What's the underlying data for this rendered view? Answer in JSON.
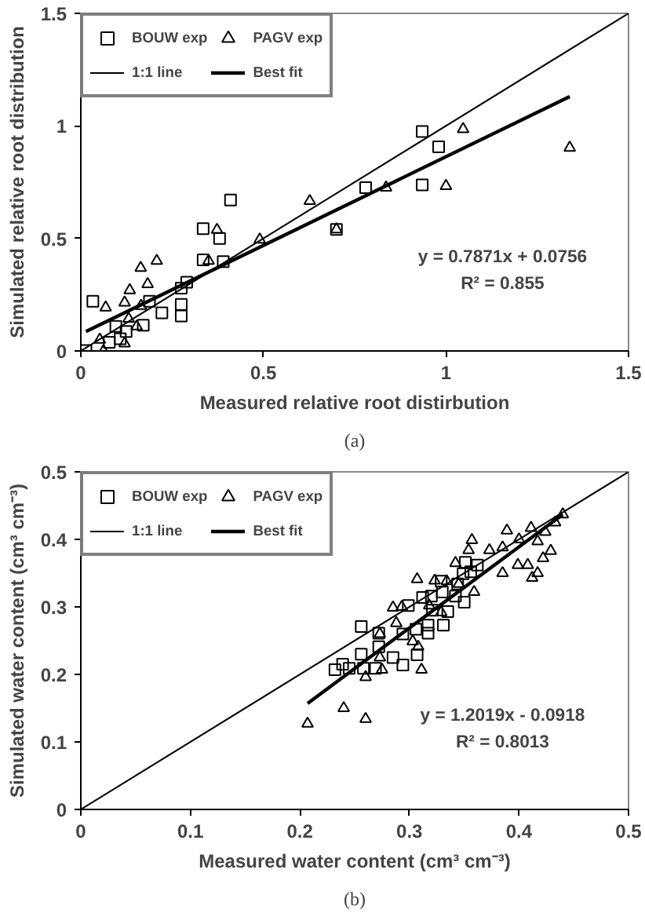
{
  "chart_data": [
    {
      "type": "scatter",
      "xlabel": "Measured relative root distirbution",
      "ylabel": "Simulated relative root distribution",
      "xlim": [
        0,
        1.5
      ],
      "ylim": [
        0,
        1.5
      ],
      "xticks": [
        0,
        0.5,
        1,
        1.5
      ],
      "yticks": [
        0,
        0.5,
        1,
        1.5
      ],
      "grid": false,
      "legend": "top left",
      "annotations": [
        {
          "text": "y = 0.7871x + 0.0756"
        },
        {
          "text": "R² = 0.855"
        },
        {
          "text": "(a)"
        }
      ],
      "series": [
        {
          "name": "BOUW exp",
          "color": "#000000",
          "marker": "square",
          "x": [
            0.935,
            0.98,
            0.935,
            0.78,
            0.41,
            0.335,
            0.38,
            0.335,
            0.39,
            0.7,
            0.29,
            0.275,
            0.033,
            0.188,
            0.275,
            0.222,
            0.275,
            0.171,
            0.096,
            0.108,
            0.078,
            0.014,
            0.124
          ],
          "values": [
            0.975,
            0.907,
            0.738,
            0.726,
            0.671,
            0.543,
            0.5,
            0.405,
            0.397,
            0.54,
            0.305,
            0.279,
            0.221,
            0.221,
            0.207,
            0.169,
            0.155,
            0.114,
            0.109,
            0.054,
            0.038,
            0.002,
            0.086
          ]
        },
        {
          "name": "PAGV exp",
          "color": "#000000",
          "marker": "triangle",
          "x": [
            1.047,
            1.339,
            1.0,
            0.836,
            0.627,
            0.7,
            0.49,
            0.373,
            0.35,
            0.208,
            0.164,
            0.183,
            0.134,
            0.12,
            0.068,
            0.165,
            0.131,
            0.153,
            0.052,
            0.062,
            0.12
          ],
          "values": [
            0.986,
            0.903,
            0.733,
            0.726,
            0.666,
            0.54,
            0.495,
            0.538,
            0.4,
            0.4,
            0.369,
            0.297,
            0.27,
            0.215,
            0.193,
            0.2,
            0.143,
            0.109,
            0.05,
            0.0,
            0.033
          ]
        },
        {
          "name": "1:1 line",
          "color": "#000000",
          "type": "line",
          "x": [
            0,
            1.5
          ],
          "values": [
            0,
            1.5
          ]
        },
        {
          "name": "Best fit",
          "color": "#000000",
          "type": "line",
          "x": [
            0.014,
            1.339
          ],
          "values": [
            0.086,
            1.13
          ]
        }
      ]
    },
    {
      "type": "scatter",
      "xlabel": "Measured water content (cm³ cm⁻³)",
      "ylabel": "Simulated water content (cm³ cm⁻³)",
      "xlim": [
        0,
        0.5
      ],
      "ylim": [
        0,
        0.5
      ],
      "xticks": [
        0,
        0.1,
        0.2,
        0.3,
        0.4,
        0.5
      ],
      "yticks": [
        0,
        0.1,
        0.2,
        0.3,
        0.4,
        0.5
      ],
      "grid": false,
      "legend": "top left",
      "annotations": [
        {
          "text": "y = 1.2019x - 0.0918"
        },
        {
          "text": "R² = 0.8013"
        },
        {
          "text": "(b)"
        }
      ],
      "series": [
        {
          "name": "BOUW exp",
          "color": "#000000",
          "marker": "square",
          "x": [
            0.232,
            0.239,
            0.245,
            0.256,
            0.256,
            0.258,
            0.269,
            0.272,
            0.272,
            0.285,
            0.294,
            0.294,
            0.299,
            0.307,
            0.306,
            0.312,
            0.317,
            0.317,
            0.32,
            0.321,
            0.329,
            0.33,
            0.331,
            0.335,
            0.342,
            0.344,
            0.35,
            0.351,
            0.356,
            0.349,
            0.362
          ],
          "values": [
            0.207,
            0.215,
            0.209,
            0.271,
            0.23,
            0.209,
            0.209,
            0.261,
            0.241,
            0.225,
            0.214,
            0.26,
            0.302,
            0.229,
            0.267,
            0.314,
            0.273,
            0.261,
            0.316,
            0.295,
            0.338,
            0.322,
            0.273,
            0.293,
            0.316,
            0.334,
            0.307,
            0.366,
            0.352,
            0.349,
            0.362
          ]
        },
        {
          "name": "PAGV exp",
          "color": "#000000",
          "marker": "triangle",
          "x": [
            0.44,
            0.433,
            0.424,
            0.411,
            0.417,
            0.4,
            0.389,
            0.385,
            0.373,
            0.354,
            0.357,
            0.429,
            0.422,
            0.408,
            0.399,
            0.385,
            0.417,
            0.412,
            0.359,
            0.342,
            0.345,
            0.334,
            0.323,
            0.307,
            0.329,
            0.318,
            0.293,
            0.285,
            0.288,
            0.273,
            0.303,
            0.308,
            0.273,
            0.275,
            0.26,
            0.311,
            0.207,
            0.24,
            0.26
          ],
          "values": [
            0.437,
            0.425,
            0.411,
            0.417,
            0.397,
            0.4,
            0.413,
            0.388,
            0.384,
            0.384,
            0.399,
            0.383,
            0.372,
            0.362,
            0.362,
            0.35,
            0.35,
            0.343,
            0.322,
            0.365,
            0.334,
            0.338,
            0.339,
            0.341,
            0.292,
            0.302,
            0.3,
            0.299,
            0.276,
            0.26,
            0.249,
            0.241,
            0.225,
            0.207,
            0.196,
            0.207,
            0.127,
            0.15,
            0.134
          ]
        },
        {
          "name": "1:1 line",
          "color": "#000000",
          "type": "line",
          "x": [
            0,
            0.5
          ],
          "values": [
            0,
            0.5
          ]
        },
        {
          "name": "Best fit",
          "color": "#000000",
          "type": "line",
          "x": [
            0.207,
            0.44
          ],
          "values": [
            0.157,
            0.437
          ]
        }
      ]
    }
  ]
}
